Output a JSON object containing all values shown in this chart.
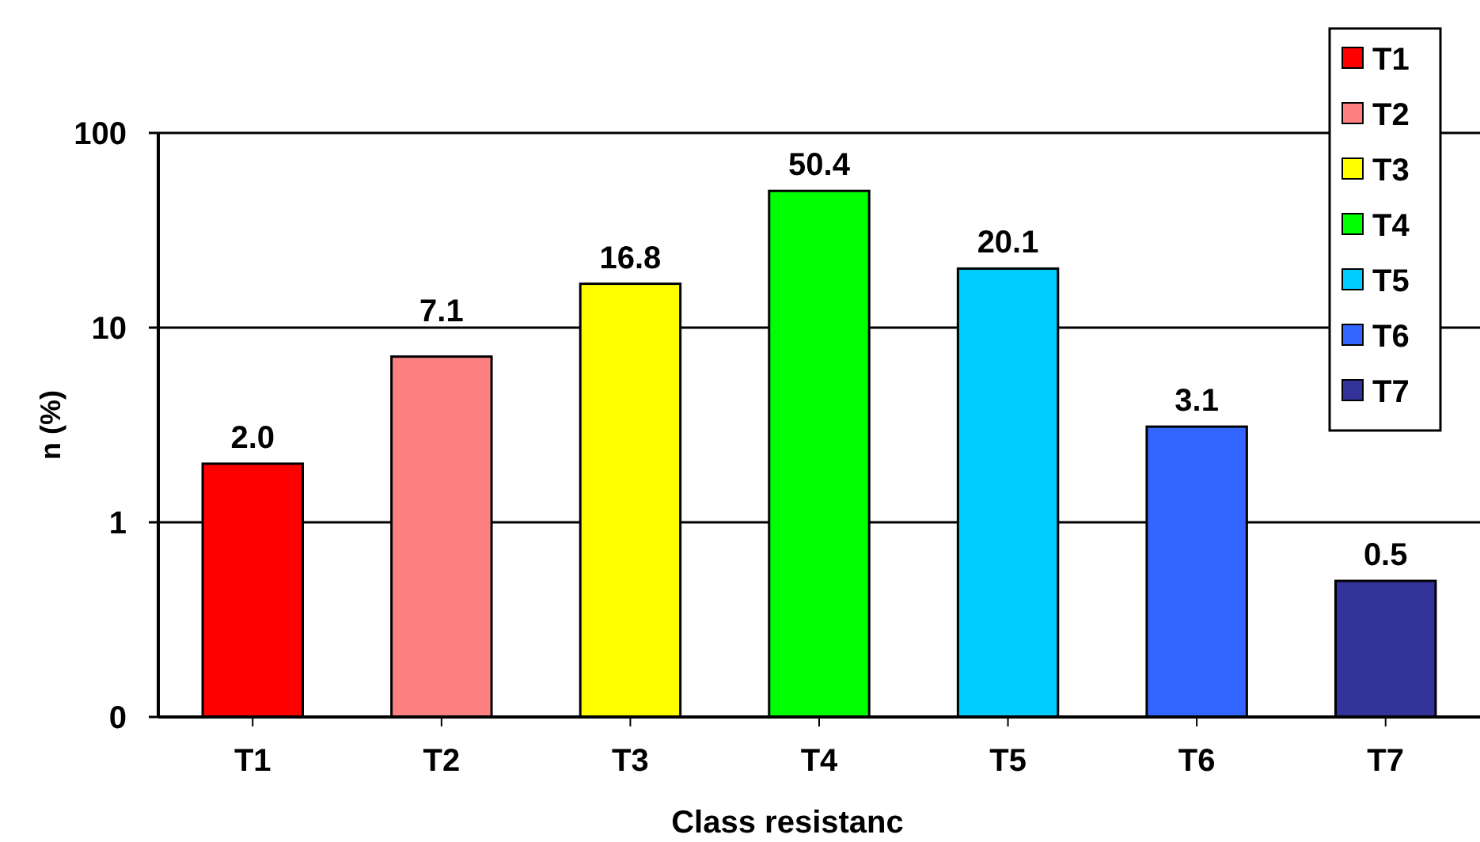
{
  "chart_data": {
    "type": "bar",
    "xlabel": "Class resistanc",
    "ylabel": "n (%)",
    "categories": [
      "T1",
      "T2",
      "T3",
      "T4",
      "T5",
      "T6",
      "T7"
    ],
    "series": [
      {
        "name": "T1",
        "color": "#ff0000",
        "values": [
          2.0,
          null,
          null,
          null,
          null,
          null,
          null
        ],
        "value_labels": [
          "2.0",
          null,
          null,
          null,
          null,
          null,
          null
        ]
      },
      {
        "name": "T2",
        "color": "#ff8080",
        "values": [
          null,
          7.1,
          null,
          null,
          null,
          null,
          null
        ],
        "value_labels": [
          null,
          "7.1",
          null,
          null,
          null,
          null,
          null
        ]
      },
      {
        "name": "T3",
        "color": "#ffff00",
        "values": [
          null,
          null,
          16.8,
          null,
          null,
          null,
          null
        ],
        "value_labels": [
          null,
          null,
          "16.8",
          null,
          null,
          null,
          null
        ]
      },
      {
        "name": "T4",
        "color": "#00ff00",
        "values": [
          null,
          null,
          null,
          50.4,
          null,
          null,
          null
        ],
        "value_labels": [
          null,
          null,
          null,
          "50.4",
          null,
          null,
          null
        ]
      },
      {
        "name": "T5",
        "color": "#00ccff",
        "values": [
          null,
          null,
          null,
          null,
          20.1,
          null,
          null
        ],
        "value_labels": [
          null,
          null,
          null,
          null,
          "20.1",
          null,
          null
        ]
      },
      {
        "name": "T6",
        "color": "#3366ff",
        "values": [
          null,
          null,
          null,
          null,
          null,
          3.1,
          null
        ],
        "value_labels": [
          null,
          null,
          null,
          null,
          null,
          "3.1",
          null
        ]
      },
      {
        "name": "T7",
        "color": "#333399",
        "values": [
          null,
          null,
          null,
          null,
          null,
          null,
          0.5
        ],
        "value_labels": [
          null,
          null,
          null,
          null,
          null,
          null,
          "0.5"
        ]
      }
    ],
    "log": "y",
    "ylim": [
      0.1,
      100
    ],
    "yticks": [
      {
        "value": 0.1,
        "label": "0"
      },
      1,
      10,
      100
    ],
    "grid": "y",
    "legend": "top right"
  }
}
